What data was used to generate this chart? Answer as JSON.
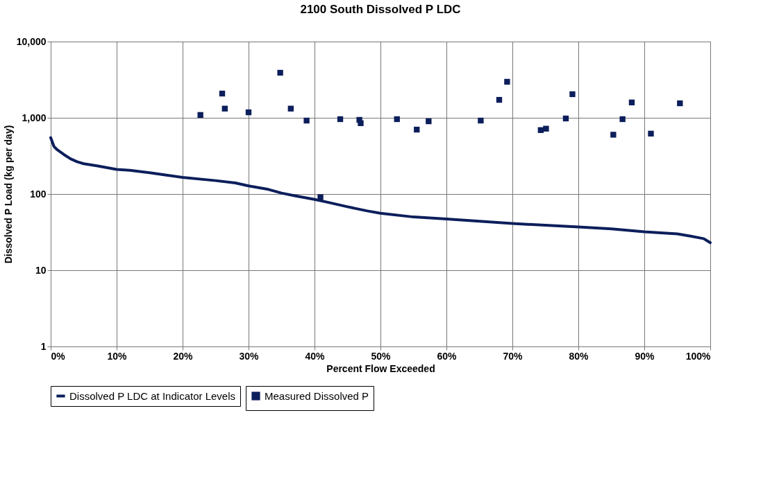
{
  "chart_data": {
    "type": "line",
    "title": "2100 South Dissolved P LDC",
    "xlabel": "Percent Flow Exceeded",
    "ylabel": "Dissolved P Load (kg per day)",
    "series": [
      {
        "name": "Dissolved P LDC at Indicator Levels",
        "color": "#0c1e5b",
        "marker": "none",
        "line_style": "solid",
        "x": [
          0,
          0.5,
          1,
          2,
          3,
          4,
          5,
          7,
          10,
          12,
          15,
          20,
          25,
          28,
          30,
          33,
          35,
          37,
          40,
          42,
          45,
          48,
          50,
          55,
          60,
          65,
          70,
          75,
          80,
          85,
          90,
          95,
          97,
          99,
          100
        ],
        "values": [
          550,
          420,
          380,
          330,
          290,
          265,
          250,
          235,
          210,
          205,
          190,
          165,
          150,
          140,
          128,
          115,
          103,
          95,
          85,
          78,
          68,
          60,
          56,
          50,
          47,
          44,
          41,
          39,
          37,
          35,
          32,
          30,
          28,
          26,
          23
        ]
      },
      {
        "name": "Measured Dissolved P",
        "type": "scatter",
        "color": "#0c1e5b",
        "marker": "square",
        "x": [
          22.7,
          26,
          26.4,
          30,
          34.8,
          36.4,
          38.8,
          40.9,
          43.9,
          46.8,
          47,
          52.5,
          55.5,
          57.3,
          65.2,
          68,
          69.2,
          74.3,
          75.1,
          78.1,
          79.1,
          85.3,
          86.7,
          88.1,
          91,
          95.4
        ],
        "values": [
          1090,
          2080,
          1320,
          1180,
          3900,
          1320,
          920,
          91,
          960,
          940,
          850,
          960,
          700,
          900,
          920,
          1720,
          2970,
          690,
          720,
          980,
          2040,
          600,
          960,
          1590,
          620,
          1550
        ]
      }
    ],
    "xlim": [
      0,
      100
    ],
    "xticks": [
      {
        "value": 0,
        "label": "0%"
      },
      {
        "value": 10,
        "label": "10%"
      },
      {
        "value": 20,
        "label": "20%"
      },
      {
        "value": 30,
        "label": "30%"
      },
      {
        "value": 40,
        "label": "40%"
      },
      {
        "value": 50,
        "label": "50%"
      },
      {
        "value": 60,
        "label": "60%"
      },
      {
        "value": 70,
        "label": "70%"
      },
      {
        "value": 80,
        "label": "80%"
      },
      {
        "value": 90,
        "label": "90%"
      },
      {
        "value": 100,
        "label": "100%"
      }
    ],
    "ylim": [
      1,
      10000
    ],
    "yticks": [
      1,
      10,
      100,
      {
        "value": 1000,
        "label": "1,000"
      },
      {
        "value": 10000,
        "label": "10,000"
      }
    ],
    "log": "y",
    "grid": true,
    "legend": "bottom"
  }
}
